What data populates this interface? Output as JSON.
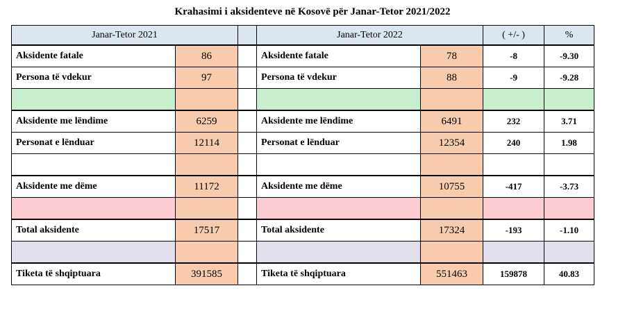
{
  "title": "Krahasimi i aksidenteve në Kosovë për Janar-Tetor 2021/2022",
  "headers": {
    "period_2021": "Janar-Tetor 2021",
    "period_2022": "Janar-Tetor 2022",
    "diff": "( +/- )",
    "pct": "%"
  },
  "rows": [
    {
      "label_2021": "Aksidente fatale",
      "val_2021": "86",
      "label_2022": "Aksidente fatale",
      "val_2022": "78",
      "diff": "-8",
      "pct": "-9.30"
    },
    {
      "label_2021": "Persona të vdekur",
      "val_2021": "97",
      "label_2022": "Persona të vdekur",
      "val_2022": "88",
      "diff": "-9",
      "pct": "-9.28"
    },
    {
      "label_2021": "Aksidente me lëndime",
      "val_2021": "6259",
      "label_2022": "Aksidente me lëndime",
      "val_2022": "6491",
      "diff": "232",
      "pct": "3.71"
    },
    {
      "label_2021": "Personat e lënduar",
      "val_2021": "12114",
      "label_2022": "Personat e lënduar",
      "val_2022": "12354",
      "diff": "240",
      "pct": "1.98"
    },
    {
      "label_2021": "Aksidente me dëme",
      "val_2021": "11172",
      "label_2022": "Aksidente me dëme",
      "val_2022": "10755",
      "diff": "-417",
      "pct": "-3.73"
    },
    {
      "label_2021": "Total aksidente",
      "val_2021": "17517",
      "label_2022": "Total aksidente",
      "val_2022": "17324",
      "diff": "-193",
      "pct": "-1.10"
    },
    {
      "label_2021": "Tiketa të shqiptuara",
      "val_2021": "391585",
      "label_2022": "Tiketa të shqiptuara",
      "val_2022": "551463",
      "diff": "159878",
      "pct": "40.83"
    }
  ],
  "colors": {
    "header_bg": "#dce6f1",
    "value_bg": "#f8cbad",
    "separator_green": "#c6efce",
    "separator_pink": "#fecdd3",
    "separator_lavender": "#e4dfec"
  }
}
